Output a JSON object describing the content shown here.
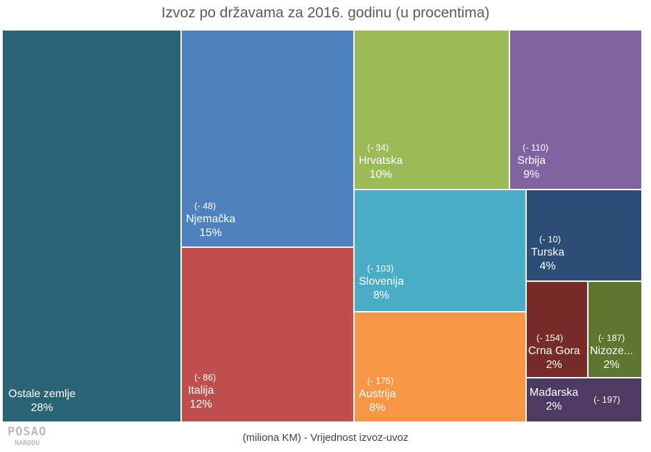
{
  "chart_data": {
    "type": "treemap",
    "title": "Izvoz po državama za 2016. godinu (u procentima)",
    "subtitle": "(miliona KM) - Vrijednost izvoz-uvoz",
    "items": [
      {
        "name": "Ostale zemlje",
        "percent": 28,
        "balance": "",
        "color": "#2b6575"
      },
      {
        "name": "Njemačka",
        "percent": 15,
        "balance": "(- 48)",
        "color": "#4f81bd"
      },
      {
        "name": "Italija",
        "percent": 12,
        "balance": "(- 86)",
        "color": "#c0504d"
      },
      {
        "name": "Hrvatska",
        "percent": 10,
        "balance": "(- 34)",
        "color": "#9bbb59"
      },
      {
        "name": "Srbija",
        "percent": 9,
        "balance": "(- 110)",
        "color": "#8064a2"
      },
      {
        "name": "Slovenija",
        "percent": 8,
        "balance": "(- 103)",
        "color": "#4bacc6"
      },
      {
        "name": "Austrija",
        "percent": 8,
        "balance": "(- 175)",
        "color": "#f79646"
      },
      {
        "name": "Turska",
        "percent": 4,
        "balance": "(- 10)",
        "color": "#2c4d75"
      },
      {
        "name": "Crna Gora",
        "percent": 2,
        "balance": "(- 154)",
        "color": "#772c2a"
      },
      {
        "name": "Nizoze...",
        "percent": 2,
        "balance": "(- 187)",
        "color": "#5f7530"
      },
      {
        "name": "Mađarska",
        "percent": 2,
        "balance": "(- 197)",
        "color": "#4d3b62"
      }
    ]
  },
  "logo": {
    "line1": "POSAO",
    "line2": "NARODU"
  }
}
